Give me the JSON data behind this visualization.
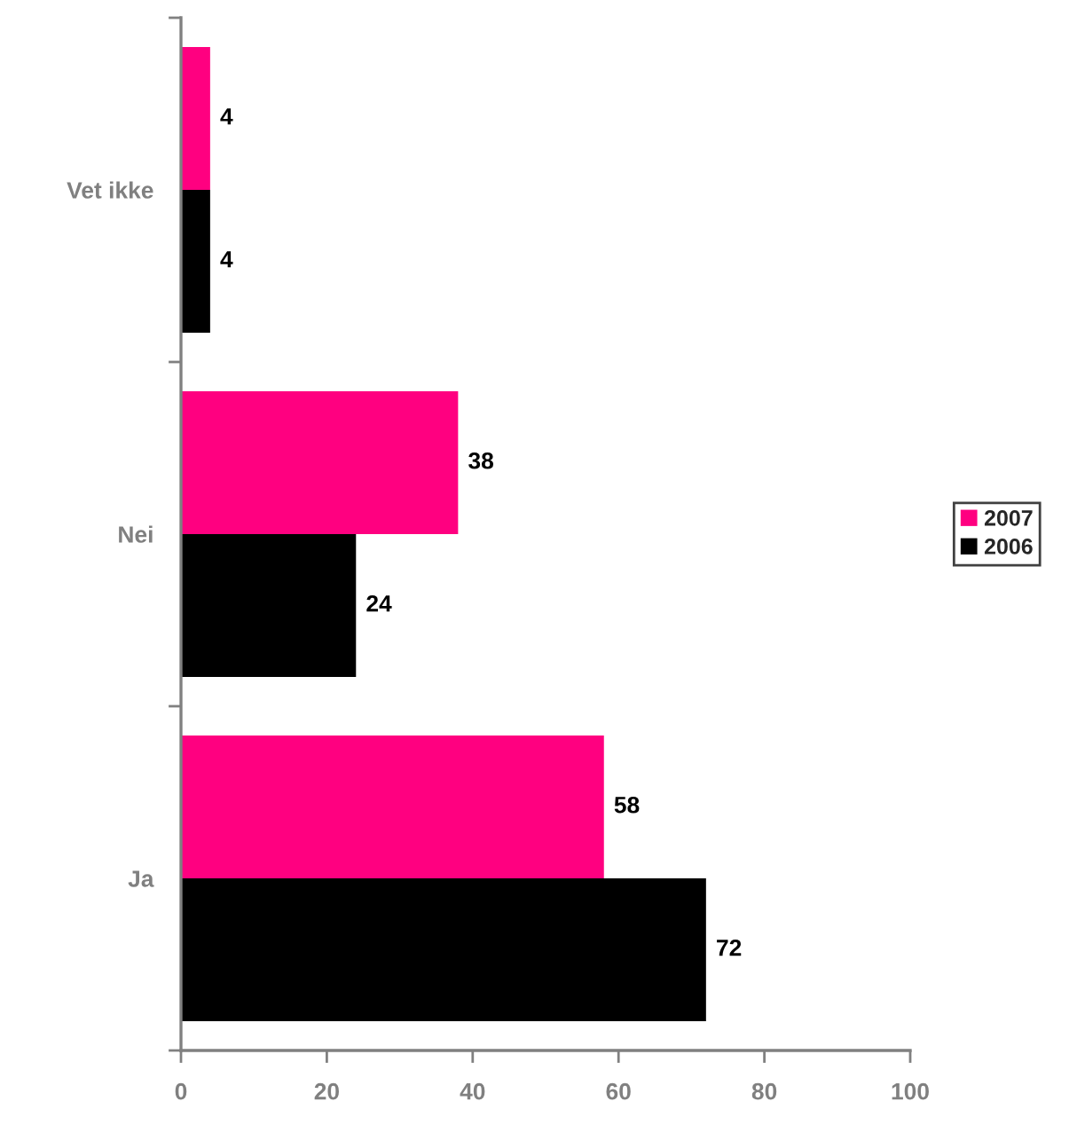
{
  "chart_data": {
    "type": "bar",
    "orientation": "horizontal",
    "categories": [
      "Vet ikke",
      "Nei",
      "Ja"
    ],
    "series": [
      {
        "name": "2007",
        "color": "#ff0080",
        "values": [
          4,
          38,
          58
        ]
      },
      {
        "name": "2006",
        "color": "#000000",
        "values": [
          4,
          24,
          72
        ]
      }
    ],
    "xlim": [
      0,
      100
    ],
    "xticks": [
      0,
      20,
      40,
      60,
      80,
      100
    ],
    "data_labels": true,
    "legend": "right"
  }
}
